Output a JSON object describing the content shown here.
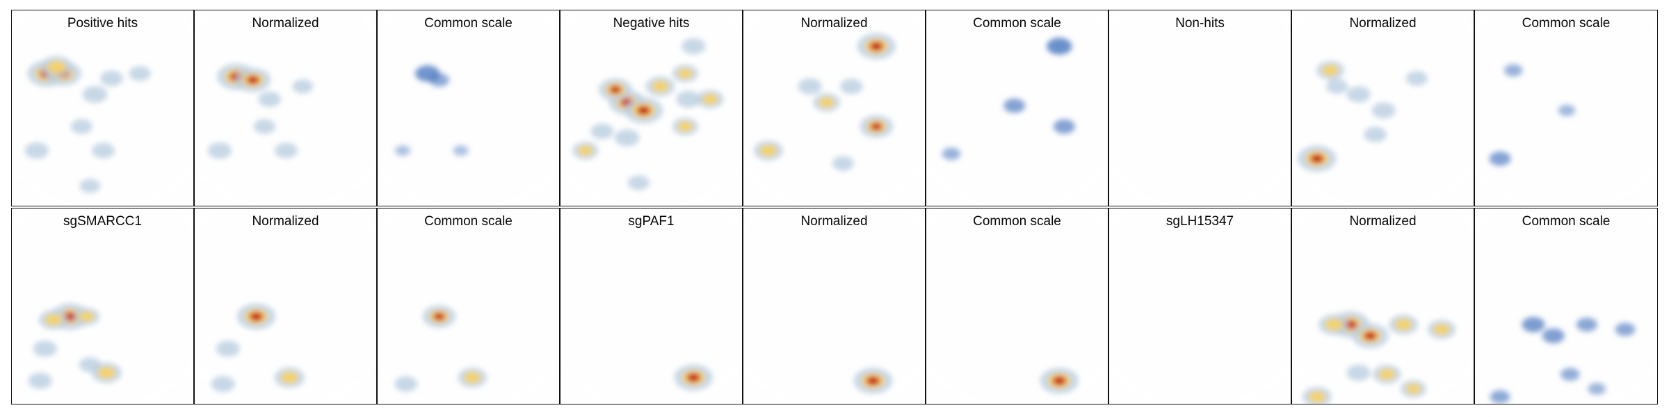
{
  "figure": {
    "colors": {
      "background_map": "#e0e0e0",
      "heat_low": "#b9cde0",
      "heat_mid": "#f3d36b",
      "heat_high": "#c80f0f",
      "common_scale": "#4a78bf"
    },
    "rows": [
      {
        "panels": [
          {
            "title": "Positive hits",
            "mode": "heat",
            "hotspots": [
              [
                0.16,
                0.22,
                1.0
              ],
              [
                0.26,
                0.22,
                0.85
              ],
              [
                0.22,
                0.18,
                0.7
              ],
              [
                0.45,
                0.35,
                0.35
              ],
              [
                0.55,
                0.25,
                0.25
              ],
              [
                0.72,
                0.22,
                0.2
              ],
              [
                0.1,
                0.7,
                0.3
              ],
              [
                0.5,
                0.7,
                0.25
              ],
              [
                0.37,
                0.55,
                0.2
              ],
              [
                0.42,
                0.92,
                0.15
              ]
            ]
          },
          {
            "title": "Normalized",
            "mode": "heat",
            "hotspots": [
              [
                0.2,
                0.24,
                1.0
              ],
              [
                0.3,
                0.26,
                0.85
              ],
              [
                0.4,
                0.38,
                0.25
              ],
              [
                0.1,
                0.7,
                0.3
              ],
              [
                0.5,
                0.7,
                0.25
              ],
              [
                0.37,
                0.55,
                0.2
              ],
              [
                0.6,
                0.3,
                0.15
              ]
            ]
          },
          {
            "title": "Common scale",
            "mode": "common",
            "hotspots": [
              [
                0.25,
                0.22,
                0.8
              ],
              [
                0.32,
                0.26,
                0.5
              ],
              [
                0.1,
                0.7,
                0.2
              ],
              [
                0.45,
                0.7,
                0.2
              ]
            ]
          },
          {
            "title": "Negative hits",
            "mode": "heat",
            "hotspots": [
              [
                0.35,
                0.4,
                0.9
              ],
              [
                0.45,
                0.45,
                1.0
              ],
              [
                0.28,
                0.32,
                0.75
              ],
              [
                0.55,
                0.3,
                0.55
              ],
              [
                0.7,
                0.22,
                0.4
              ],
              [
                0.85,
                0.38,
                0.45
              ],
              [
                0.72,
                0.38,
                0.35
              ],
              [
                0.1,
                0.7,
                0.4
              ],
              [
                0.35,
                0.62,
                0.35
              ],
              [
                0.7,
                0.55,
                0.4
              ],
              [
                0.75,
                0.05,
                0.3
              ],
              [
                0.2,
                0.58,
                0.25
              ],
              [
                0.42,
                0.9,
                0.2
              ]
            ]
          },
          {
            "title": "Normalized",
            "mode": "heat",
            "hotspots": [
              [
                0.75,
                0.05,
                1.0
              ],
              [
                0.75,
                0.55,
                0.75
              ],
              [
                0.1,
                0.7,
                0.55
              ],
              [
                0.45,
                0.4,
                0.45
              ],
              [
                0.35,
                0.3,
                0.3
              ],
              [
                0.6,
                0.3,
                0.25
              ],
              [
                0.55,
                0.78,
                0.2
              ]
            ]
          },
          {
            "title": "Common scale",
            "mode": "common",
            "hotspots": [
              [
                0.75,
                0.05,
                0.85
              ],
              [
                0.78,
                0.55,
                0.6
              ],
              [
                0.48,
                0.42,
                0.6
              ],
              [
                0.1,
                0.72,
                0.4
              ]
            ]
          },
          {
            "title": "Non-hits",
            "mode": "heat",
            "hotspots": []
          },
          {
            "title": "Normalized",
            "mode": "heat",
            "hotspots": [
              [
                0.1,
                0.75,
                1.0
              ],
              [
                0.18,
                0.2,
                0.5
              ],
              [
                0.35,
                0.35,
                0.3
              ],
              [
                0.5,
                0.45,
                0.3
              ],
              [
                0.7,
                0.25,
                0.2
              ],
              [
                0.45,
                0.6,
                0.25
              ],
              [
                0.22,
                0.3,
                0.2
              ]
            ]
          },
          {
            "title": "Common scale",
            "mode": "common",
            "hotspots": [
              [
                0.1,
                0.75,
                0.6
              ],
              [
                0.18,
                0.2,
                0.4
              ],
              [
                0.5,
                0.45,
                0.3
              ]
            ]
          }
        ]
      },
      {
        "panels": [
          {
            "title": "sgSMARCC1",
            "mode": "heat",
            "hotspots": [
              [
                0.3,
                0.5,
                1.0
              ],
              [
                0.2,
                0.52,
                0.55
              ],
              [
                0.4,
                0.5,
                0.4
              ],
              [
                0.52,
                0.85,
                0.6
              ],
              [
                0.12,
                0.9,
                0.3
              ],
              [
                0.15,
                1.1,
                0.3
              ],
              [
                0.42,
                1.2,
                0.2
              ]
            ]
          },
          {
            "title": "Normalized",
            "mode": "heat",
            "hotspots": [
              [
                0.32,
                0.5,
                1.0
              ],
              [
                0.52,
                0.88,
                0.6
              ],
              [
                0.12,
                0.92,
                0.3
              ],
              [
                0.15,
                1.1,
                0.3
              ]
            ]
          },
          {
            "title": "Common scale",
            "mode": "heat",
            "hotspots": [
              [
                0.32,
                0.5,
                0.75
              ],
              [
                0.52,
                0.88,
                0.55
              ],
              [
                0.12,
                0.92,
                0.25
              ]
            ]
          },
          {
            "title": "sgPAF1",
            "mode": "heat",
            "hotspots": [
              [
                0.75,
                0.88,
                1.0
              ]
            ]
          },
          {
            "title": "Normalized",
            "mode": "heat",
            "hotspots": [
              [
                0.73,
                0.9,
                1.0
              ]
            ]
          },
          {
            "title": "Common scale",
            "mode": "heat",
            "hotspots": [
              [
                0.75,
                0.9,
                1.0
              ]
            ]
          },
          {
            "title": "sgLH15347",
            "mode": "heat",
            "hotspots": []
          },
          {
            "title": "Normalized",
            "mode": "heat",
            "hotspots": [
              [
                0.3,
                0.55,
                1.0
              ],
              [
                0.42,
                0.62,
                0.9
              ],
              [
                0.2,
                0.55,
                0.6
              ],
              [
                0.62,
                0.55,
                0.55
              ],
              [
                0.85,
                0.58,
                0.5
              ],
              [
                0.52,
                0.86,
                0.5
              ],
              [
                0.68,
                0.95,
                0.4
              ],
              [
                0.1,
                1.0,
                0.55
              ],
              [
                0.35,
                0.85,
                0.3
              ]
            ]
          },
          {
            "title": "Common scale",
            "mode": "common",
            "hotspots": [
              [
                0.3,
                0.55,
                0.7
              ],
              [
                0.42,
                0.62,
                0.65
              ],
              [
                0.62,
                0.55,
                0.55
              ],
              [
                0.85,
                0.58,
                0.5
              ],
              [
                0.1,
                1.0,
                0.5
              ],
              [
                0.52,
                0.86,
                0.45
              ],
              [
                0.68,
                0.95,
                0.35
              ]
            ]
          }
        ]
      }
    ]
  }
}
